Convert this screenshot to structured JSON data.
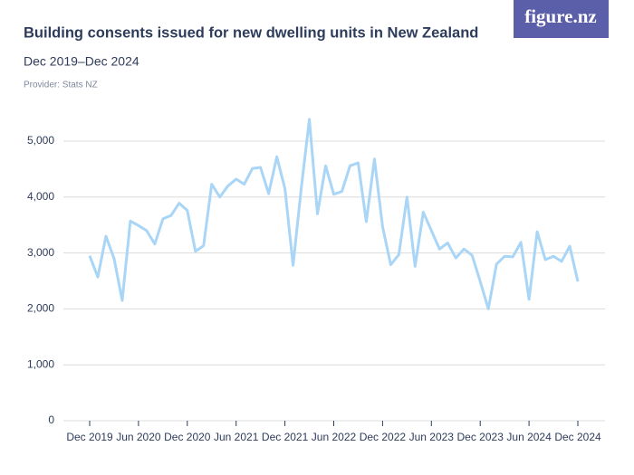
{
  "logo": "figure.nz",
  "chart_data": {
    "type": "line",
    "title": "Building consents issued for new dwelling units in New Zealand",
    "subtitle": "Dec 2019–Dec 2024",
    "provider": "Provider: Stats NZ",
    "categories": [
      "Dec 2019",
      null,
      null,
      null,
      null,
      null,
      "Jun 2020",
      null,
      null,
      null,
      null,
      null,
      "Dec 2020",
      null,
      null,
      null,
      null,
      null,
      "Jun 2021",
      null,
      null,
      null,
      null,
      null,
      "Dec 2021",
      null,
      null,
      null,
      null,
      null,
      "Jun 2022",
      null,
      null,
      null,
      null,
      null,
      "Dec 2022",
      null,
      null,
      null,
      null,
      null,
      "Jun 2023",
      null,
      null,
      null,
      null,
      null,
      "Dec 2023",
      null,
      null,
      null,
      null,
      null,
      "Jun 2024",
      null,
      null,
      null,
      null,
      null,
      "Dec 2024"
    ],
    "values": [
      2950,
      2570,
      3300,
      2900,
      2150,
      3570,
      3490,
      3400,
      3160,
      3610,
      3670,
      3890,
      3760,
      3030,
      3130,
      4230,
      4000,
      4200,
      4320,
      4230,
      4510,
      4530,
      4060,
      4720,
      4150,
      2780,
      4150,
      5390,
      3700,
      4560,
      4050,
      4100,
      4560,
      4610,
      3560,
      4680,
      3470,
      2790,
      2970,
      4000,
      2760,
      3730,
      3400,
      3070,
      3180,
      2910,
      3070,
      2960,
      2490,
      2000,
      2800,
      2940,
      2930,
      3190,
      2170,
      3380,
      2880,
      2940,
      2850,
      3120,
      2490
    ],
    "color": "#a9d5f7",
    "ylim": [
      0,
      5400
    ],
    "yticks": [
      0,
      {
        "value": 1000,
        "label": "1,000"
      },
      {
        "value": 2000,
        "label": "2,000"
      },
      {
        "value": 3000,
        "label": "3,000"
      },
      {
        "value": 4000,
        "label": "4,000"
      },
      {
        "value": 5000,
        "label": "5,000"
      }
    ],
    "grid": true
  }
}
